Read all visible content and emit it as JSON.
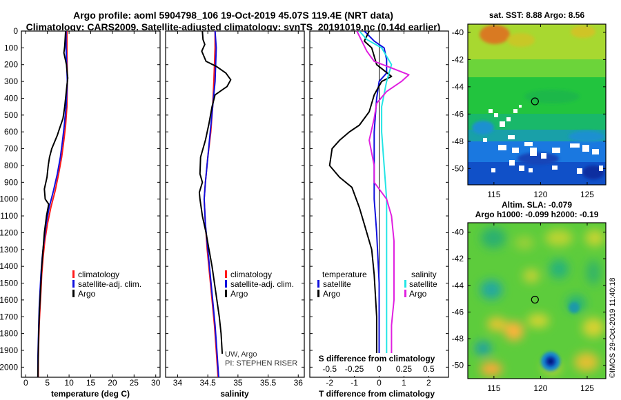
{
  "header": {
    "title_line1": "Argo profile: aoml 5904798_106 19-Oct-2019 45.07S 119.4E (NRT data)",
    "title_line2": "Climatology: CARS2009. Satellite-adjusted climatology: synTS_20191019.nc (0.14d earlier)"
  },
  "colors": {
    "climatology": "#ff1a1a",
    "satellite": "#1010dd",
    "argo": "#000000",
    "salinity_sat": "#22e5e5",
    "salinity_argo": "#e020e0"
  },
  "depth_axis": {
    "ticks": [
      "0",
      "100",
      "200",
      "300",
      "400",
      "500",
      "600",
      "700",
      "800",
      "900",
      "1000",
      "1100",
      "1200",
      "1300",
      "1400",
      "1500",
      "1600",
      "1700",
      "1800",
      "1900",
      "2000"
    ],
    "ylim": [
      2060,
      0
    ]
  },
  "chart_data": [
    {
      "id": "temperature",
      "type": "line",
      "xlabel": "temperature (deg C)",
      "xlim": [
        -1,
        31
      ],
      "xticks": [
        "0",
        "5",
        "10",
        "15",
        "20",
        "25",
        "30"
      ],
      "xtick_values": [
        0,
        5,
        10,
        15,
        20,
        25,
        30
      ],
      "legend": {
        "climatology": "climatology",
        "satellite": "satellite-adj. clim.",
        "argo": "Argo"
      },
      "series": [
        {
          "name": "climatology",
          "color_key": "climatology",
          "points": [
            [
              9.5,
              0
            ],
            [
              9.5,
              100
            ],
            [
              9.6,
              300
            ],
            [
              9.5,
              450
            ],
            [
              9.2,
              560
            ],
            [
              8.8,
              650
            ],
            [
              8.3,
              750
            ],
            [
              7.6,
              850
            ],
            [
              6.8,
              950
            ],
            [
              5.8,
              1050
            ],
            [
              5.0,
              1150
            ],
            [
              4.4,
              1250
            ],
            [
              4.0,
              1350
            ],
            [
              3.7,
              1450
            ],
            [
              3.5,
              1550
            ],
            [
              3.3,
              1650
            ],
            [
              3.1,
              1750
            ],
            [
              3.0,
              1850
            ],
            [
              2.9,
              1950
            ],
            [
              2.9,
              2060
            ]
          ]
        },
        {
          "name": "satellite-adj. clim.",
          "color_key": "satellite",
          "points": [
            [
              9.3,
              0
            ],
            [
              9.3,
              100
            ],
            [
              9.6,
              300
            ],
            [
              9.3,
              450
            ],
            [
              8.9,
              560
            ],
            [
              8.5,
              650
            ],
            [
              8.0,
              750
            ],
            [
              7.3,
              850
            ],
            [
              6.4,
              950
            ],
            [
              5.4,
              1050
            ],
            [
              4.7,
              1150
            ],
            [
              4.2,
              1250
            ],
            [
              3.8,
              1350
            ],
            [
              3.5,
              1450
            ],
            [
              3.3,
              1550
            ],
            [
              3.1,
              1650
            ],
            [
              3.0,
              1750
            ],
            [
              2.9,
              1850
            ],
            [
              2.8,
              1950
            ],
            [
              2.8,
              2060
            ]
          ]
        },
        {
          "name": "Argo",
          "color_key": "argo",
          "points": [
            [
              9.2,
              0
            ],
            [
              9.0,
              90
            ],
            [
              8.8,
              130
            ],
            [
              9.4,
              200
            ],
            [
              9.7,
              280
            ],
            [
              9.4,
              350
            ],
            [
              9.0,
              450
            ],
            [
              8.6,
              520
            ],
            [
              7.8,
              580
            ],
            [
              7.3,
              620
            ],
            [
              6.0,
              700
            ],
            [
              5.5,
              750
            ],
            [
              5.2,
              800
            ],
            [
              4.9,
              870
            ],
            [
              4.3,
              940
            ],
            [
              4.5,
              1000
            ],
            [
              5.3,
              1030
            ],
            [
              4.8,
              1100
            ],
            [
              4.3,
              1200
            ],
            [
              4.0,
              1300
            ],
            [
              3.7,
              1400
            ],
            [
              3.5,
              1500
            ],
            [
              3.3,
              1600
            ],
            [
              3.1,
              1700
            ],
            [
              3.0,
              1800
            ],
            [
              2.9,
              1900
            ],
            [
              2.8,
              2060
            ]
          ]
        }
      ]
    },
    {
      "id": "salinity",
      "type": "line",
      "xlabel": "salinity",
      "xlim": [
        33.8,
        36.1
      ],
      "xticks": [
        "34",
        "34.5",
        "35",
        "35.5",
        "36"
      ],
      "xtick_values": [
        34,
        34.5,
        35,
        35.5,
        36
      ],
      "legend": {
        "climatology": "climatology",
        "satellite": "satellite-adj. clim.",
        "argo": "Argo"
      },
      "annotation": [
        "UW, Argo",
        "PI: STEPHEN RISER"
      ],
      "series": [
        {
          "name": "climatology",
          "color_key": "climatology",
          "points": [
            [
              34.62,
              0
            ],
            [
              34.62,
              100
            ],
            [
              34.6,
              300
            ],
            [
              34.58,
              450
            ],
            [
              34.55,
              600
            ],
            [
              34.5,
              750
            ],
            [
              34.46,
              900
            ],
            [
              34.44,
              1000
            ],
            [
              34.46,
              1150
            ],
            [
              34.49,
              1300
            ],
            [
              34.53,
              1450
            ],
            [
              34.57,
              1600
            ],
            [
              34.61,
              1750
            ],
            [
              34.64,
              1900
            ],
            [
              34.67,
              2060
            ]
          ]
        },
        {
          "name": "satellite-adj. clim.",
          "color_key": "satellite",
          "points": [
            [
              34.62,
              0
            ],
            [
              34.64,
              100
            ],
            [
              34.62,
              300
            ],
            [
              34.58,
              450
            ],
            [
              34.54,
              600
            ],
            [
              34.5,
              750
            ],
            [
              34.46,
              900
            ],
            [
              34.44,
              1000
            ],
            [
              34.46,
              1150
            ],
            [
              34.5,
              1300
            ],
            [
              34.54,
              1450
            ],
            [
              34.58,
              1600
            ],
            [
              34.62,
              1750
            ],
            [
              34.65,
              1900
            ],
            [
              34.68,
              2060
            ]
          ]
        },
        {
          "name": "Argo",
          "color_key": "argo",
          "points": [
            [
              34.41,
              0
            ],
            [
              34.42,
              50
            ],
            [
              34.45,
              80
            ],
            [
              34.4,
              120
            ],
            [
              34.47,
              180
            ],
            [
              34.64,
              210
            ],
            [
              34.8,
              250
            ],
            [
              34.88,
              290
            ],
            [
              34.82,
              330
            ],
            [
              34.62,
              380
            ],
            [
              34.57,
              450
            ],
            [
              34.52,
              550
            ],
            [
              34.46,
              650
            ],
            [
              34.38,
              750
            ],
            [
              34.37,
              850
            ],
            [
              34.41,
              900
            ],
            [
              34.36,
              960
            ],
            [
              34.37,
              1000
            ],
            [
              34.41,
              1100
            ],
            [
              34.47,
              1200
            ],
            [
              34.52,
              1300
            ],
            [
              34.57,
              1400
            ],
            [
              34.61,
              1500
            ],
            [
              34.65,
              1600
            ],
            [
              34.69,
              1700
            ],
            [
              34.72,
              1800
            ],
            [
              34.74,
              1920
            ]
          ]
        }
      ]
    },
    {
      "id": "difference",
      "type": "line",
      "xlabel": "T difference from climatology",
      "xlim": [
        -2.8,
        2.8
      ],
      "xticks": [
        "-2",
        "-1",
        "0",
        "1",
        "2"
      ],
      "xtick_values": [
        -2,
        -1,
        0,
        1,
        2
      ],
      "s_axis": {
        "label": "S difference from climatology",
        "ticks": [
          "-0.5",
          "-0.25",
          "0",
          "0.25",
          "0.5"
        ],
        "tick_values": [
          -2,
          -1,
          0,
          1,
          2
        ]
      },
      "legend": {
        "temperature": "temperature",
        "salinity": "salinity",
        "satellite": "satellite",
        "argo": "Argo"
      },
      "series": [
        {
          "name": "temperature satellite",
          "color_key": "satellite",
          "points": [
            [
              -0.6,
              0
            ],
            [
              -0.2,
              60
            ],
            [
              0.2,
              100
            ],
            [
              0.3,
              170
            ],
            [
              0.3,
              250
            ],
            [
              0.0,
              300
            ],
            [
              -0.1,
              400
            ],
            [
              -0.2,
              600
            ],
            [
              -0.2,
              800
            ],
            [
              -0.2,
              1000
            ],
            [
              -0.1,
              1200
            ],
            [
              0.0,
              1500
            ],
            [
              0.0,
              1800
            ],
            [
              0.0,
              2000
            ]
          ]
        },
        {
          "name": "temperature Argo",
          "color_key": "argo",
          "points": [
            [
              -0.4,
              0
            ],
            [
              -0.6,
              60
            ],
            [
              -0.3,
              100
            ],
            [
              -0.1,
              200
            ],
            [
              0.5,
              270
            ],
            [
              0.1,
              300
            ],
            [
              -0.2,
              380
            ],
            [
              -0.4,
              480
            ],
            [
              -0.8,
              560
            ],
            [
              -1.2,
              600
            ],
            [
              -1.6,
              650
            ],
            [
              -1.9,
              700
            ],
            [
              -2.0,
              800
            ],
            [
              -1.6,
              870
            ],
            [
              -1.1,
              930
            ],
            [
              -0.8,
              1050
            ],
            [
              -0.6,
              1150
            ],
            [
              -0.3,
              1300
            ],
            [
              -0.2,
              1450
            ],
            [
              -0.1,
              1700
            ],
            [
              -0.1,
              2000
            ]
          ]
        },
        {
          "name": "salinity satellite",
          "color_key": "salinity_sat",
          "points": [
            [
              -0.8,
              0
            ],
            [
              -0.5,
              50
            ],
            [
              0.1,
              100
            ],
            [
              0.5,
              200
            ],
            [
              0.3,
              300
            ],
            [
              0.1,
              450
            ],
            [
              0.1,
              600
            ],
            [
              0.2,
              800
            ],
            [
              0.3,
              1000
            ],
            [
              0.3,
              1400
            ],
            [
              0.3,
              1700
            ],
            [
              0.3,
              2000
            ]
          ]
        },
        {
          "name": "salinity Argo",
          "color_key": "salinity_argo",
          "points": [
            [
              -0.9,
              0
            ],
            [
              -0.7,
              60
            ],
            [
              -0.5,
              120
            ],
            [
              -0.2,
              180
            ],
            [
              0.5,
              220
            ],
            [
              1.2,
              260
            ],
            [
              0.9,
              300
            ],
            [
              0.3,
              360
            ],
            [
              -0.1,
              430
            ],
            [
              -0.2,
              520
            ],
            [
              -0.4,
              650
            ],
            [
              -0.2,
              800
            ],
            [
              -0.2,
              900
            ],
            [
              0.3,
              1000
            ],
            [
              0.5,
              1100
            ],
            [
              0.6,
              1250
            ],
            [
              0.6,
              1400
            ],
            [
              0.6,
              1600
            ],
            [
              0.5,
              1750
            ],
            [
              0.5,
              1900
            ],
            [
              0.5,
              2000
            ]
          ]
        }
      ]
    }
  ],
  "maps": {
    "sst": {
      "title": "sat. SST: 8.88 Argo: 8.56",
      "lat_ticks": [
        "-40",
        "-42",
        "-44",
        "-46",
        "-48",
        "-50"
      ],
      "lon_ticks": [
        "115",
        "120",
        "125"
      ],
      "profile_lat": -45.07,
      "profile_lon": 119.4
    },
    "sla": {
      "title1": "Altim. SLA: -0.079",
      "title2": "Argo h1000: -0.099 h2000: -0.19",
      "lat_ticks": [
        "-40",
        "-42",
        "-44",
        "-46",
        "-48",
        "-50"
      ],
      "lon_ticks": [
        "115",
        "120",
        "125"
      ],
      "profile_lat": -45.07,
      "profile_lon": 119.4
    }
  },
  "footer": {
    "stamp": "©IMOS 29-Oct-2019 11:40:18"
  }
}
